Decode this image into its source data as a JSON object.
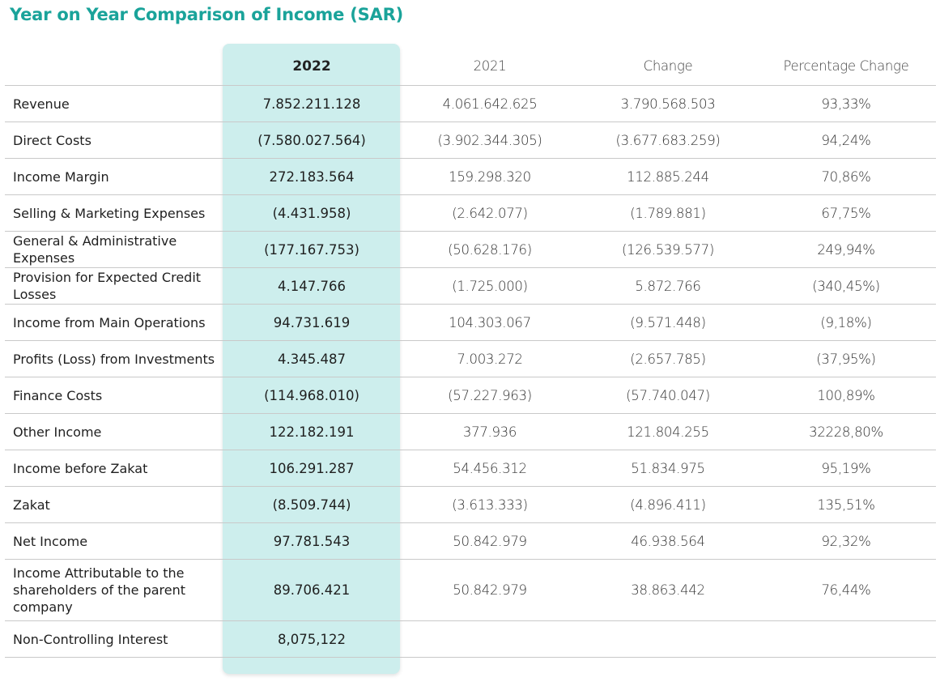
{
  "title": "Year on Year Comparison of Income (SAR)",
  "columns": [
    "",
    "2022",
    "2021",
    "Change",
    "Percentage Change"
  ],
  "rows": [
    {
      "label": "Revenue",
      "y2022": "7.852.211.128",
      "y2021": "4.061.642.625",
      "change": "3.790.568.503",
      "pct": "93,33%"
    },
    {
      "label": "Direct Costs",
      "y2022": "(7.580.027.564)",
      "y2021": "(3.902.344.305)",
      "change": "(3.677.683.259)",
      "pct": "94,24%"
    },
    {
      "label": "Income Margin",
      "y2022": "272.183.564",
      "y2021": "159.298.320",
      "change": "112.885.244",
      "pct": "70,86%"
    },
    {
      "label": "Selling & Marketing Expenses",
      "y2022": "(4.431.958)",
      "y2021": "(2.642.077)",
      "change": "(1.789.881)",
      "pct": "67,75%"
    },
    {
      "label": "General & Administrative Expenses",
      "y2022": "(177.167.753)",
      "y2021": "(50.628.176)",
      "change": "(126.539.577)",
      "pct": "249,94%"
    },
    {
      "label": "Provision for Expected Credit Losses",
      "y2022": "4.147.766",
      "y2021": "(1.725.000)",
      "change": "5.872.766",
      "pct": "(340,45%)"
    },
    {
      "label": "Income from Main Operations",
      "y2022": "94.731.619",
      "y2021": "104.303.067",
      "change": "(9.571.448)",
      "pct": "(9,18%)"
    },
    {
      "label": "Profits (Loss) from Investments",
      "y2022": "4.345.487",
      "y2021": "7.003.272",
      "change": "(2.657.785)",
      "pct": "(37,95%)"
    },
    {
      "label": "Finance Costs",
      "y2022": "(114.968.010)",
      "y2021": "(57.227.963)",
      "change": "(57.740.047)",
      "pct": "100,89%"
    },
    {
      "label": "Other Income",
      "y2022": "122.182.191",
      "y2021": "377.936",
      "change": "121.804.255",
      "pct": "32228,80%"
    },
    {
      "label": "Income before Zakat",
      "y2022": "106.291.287",
      "y2021": "54.456.312",
      "change": "51.834.975",
      "pct": "95,19%"
    },
    {
      "label": "Zakat",
      "y2022": "(8.509.744)",
      "y2021": "(3.613.333)",
      "change": "(4.896.411)",
      "pct": "135,51%"
    },
    {
      "label": "Net Income",
      "y2022": "97.781.543",
      "y2021": "50.842.979",
      "change": "46.938.564",
      "pct": "92,32%"
    },
    {
      "label": "Income Attributable to the shareholders of the parent company",
      "y2022": "89.706.421",
      "y2021": "50.842.979",
      "change": "38.863.442",
      "pct": "76,44%"
    },
    {
      "label": "Non-Controlling Interest",
      "y2022": "8,075,122",
      "y2021": "",
      "change": "",
      "pct": ""
    }
  ]
}
